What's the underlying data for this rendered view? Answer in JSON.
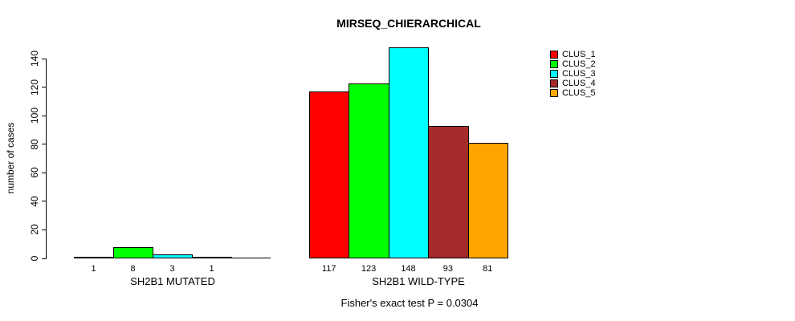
{
  "chart_data": {
    "type": "bar",
    "title": "MIRSEQ_CHIERARCHICAL",
    "ylabel": "number of cases",
    "xlabel": "",
    "ylim": [
      0,
      140
    ],
    "yticks": [
      0,
      20,
      40,
      60,
      80,
      100,
      120,
      140
    ],
    "grid": false,
    "legend_position": "top-right",
    "categories": [
      "SH2B1 MUTATED",
      "SH2B1 WILD-TYPE"
    ],
    "series": [
      {
        "name": "CLUS_1",
        "color": "#FF0000",
        "values": [
          1,
          117
        ]
      },
      {
        "name": "CLUS_2",
        "color": "#00FF00",
        "values": [
          8,
          123
        ]
      },
      {
        "name": "CLUS_3",
        "color": "#00FFFF",
        "values": [
          3,
          148
        ]
      },
      {
        "name": "CLUS_4",
        "color": "#A52A2A",
        "values": [
          1,
          93
        ]
      },
      {
        "name": "CLUS_5",
        "color": "#FFA500",
        "values": [
          0,
          81
        ]
      }
    ],
    "bar_value_labels": [
      [
        "1",
        "8",
        "3",
        "1",
        ""
      ],
      [
        "117",
        "123",
        "148",
        "93",
        "81"
      ]
    ],
    "annotation": "Fisher's exact test P = 0.0304"
  }
}
